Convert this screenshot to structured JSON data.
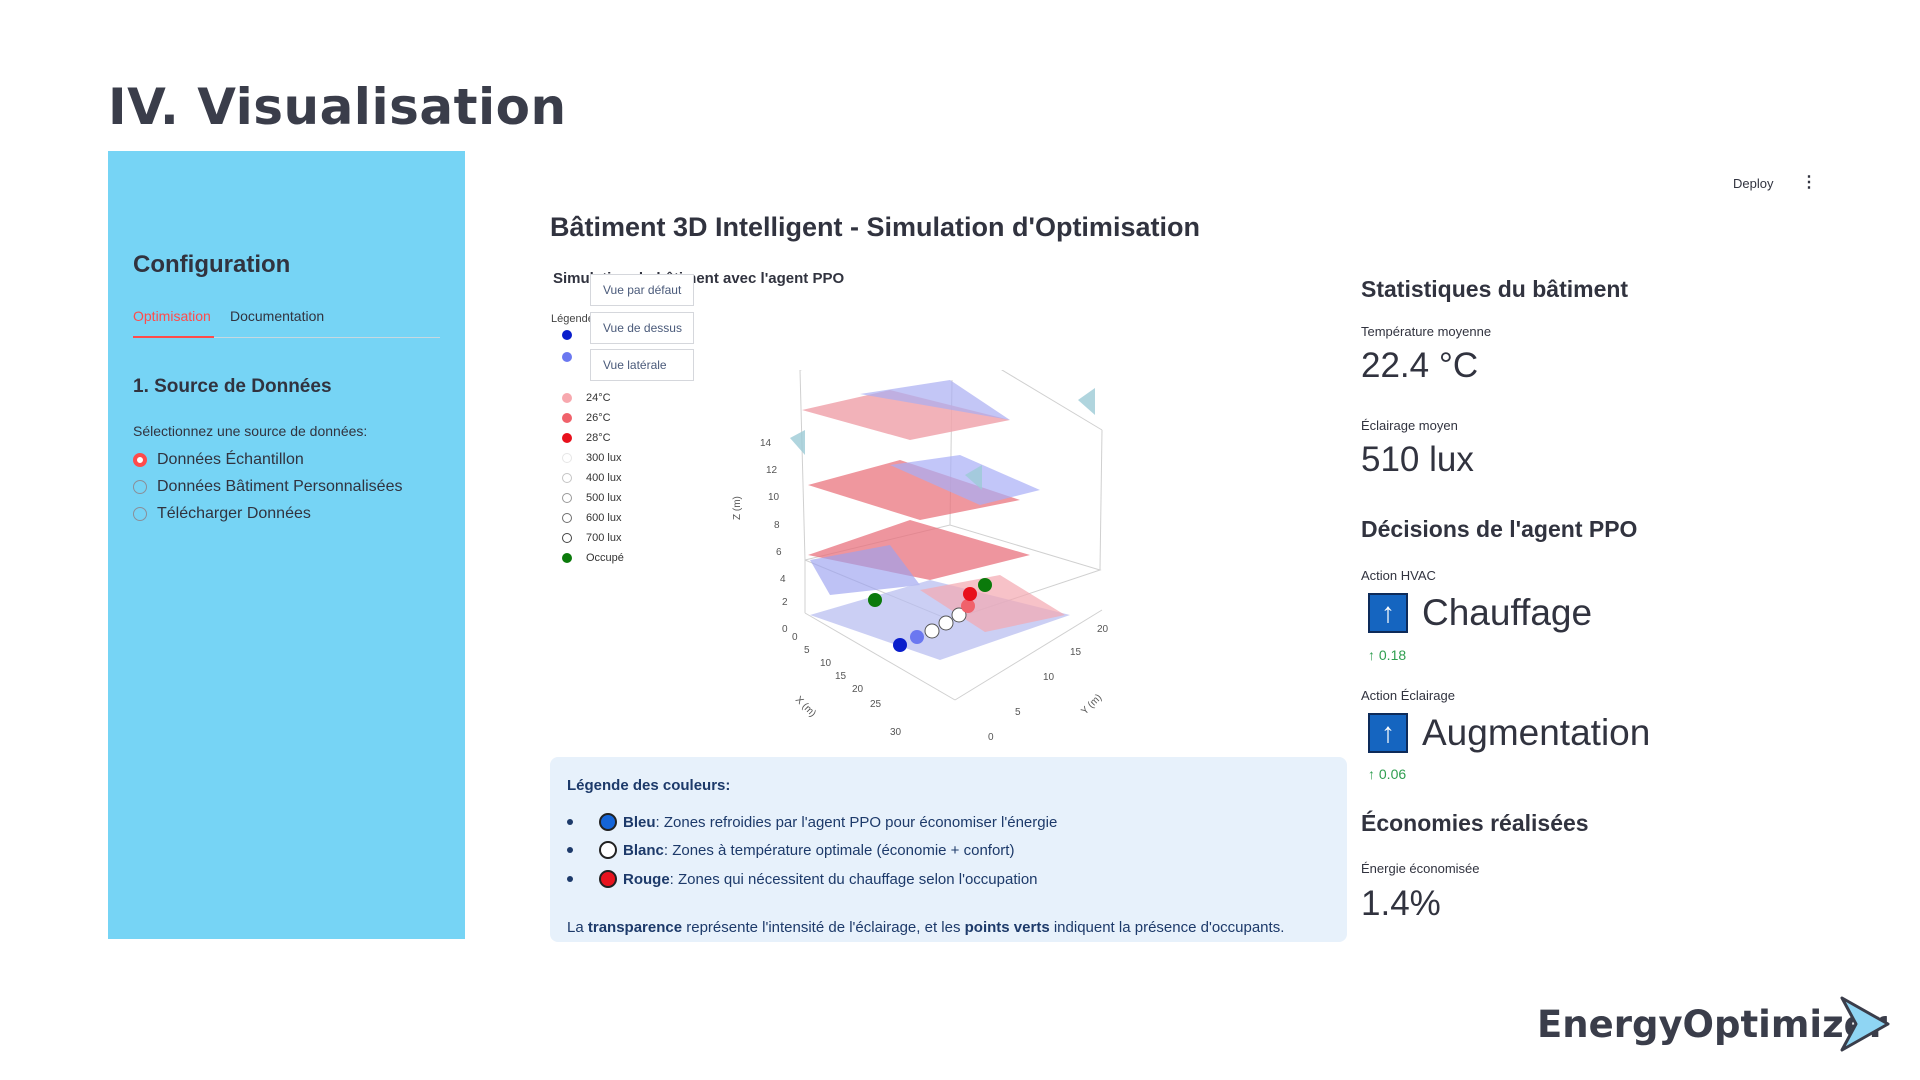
{
  "slide": {
    "title": "IV.  Visualisation",
    "brand": "EnergyOptimizer"
  },
  "sidebar": {
    "title": "Configuration",
    "tabs": [
      "Optimisation",
      "Documentation"
    ],
    "active_tab": "Optimisation",
    "section_title": "1. Source de Données",
    "radio_label": "Sélectionnez une source de données:",
    "radio_options": [
      "Données Échantillon",
      "Données Bâtiment Personnalisées",
      "Télécharger Données"
    ],
    "radio_selected": "Données Échantillon"
  },
  "toolbar": {
    "deploy_label": "Deploy",
    "menu_icon": "⋮"
  },
  "main": {
    "title": "Bâtiment 3D Intelligent - Simulation d'Optimisation",
    "plot": {
      "subtitle": "Simulation du bâtiment avec l'agent PPO",
      "view_buttons": [
        "Vue par défaut",
        "Vue de dessus",
        "Vue latérale"
      ],
      "legend_title": "Légende",
      "legend_items": [
        {
          "label": "",
          "color": "#0a1ecc"
        },
        {
          "label": "",
          "color": "#6b78f0"
        },
        {
          "label": "24°C",
          "color": "#f7a8ae"
        },
        {
          "label": "26°C",
          "color": "#f0626b"
        },
        {
          "label": "28°C",
          "color": "#e8101c"
        },
        {
          "label": "300 lux",
          "color": "#e6e6e6"
        },
        {
          "label": "400 lux",
          "color": "#c4c4c4"
        },
        {
          "label": "500 lux",
          "color": "#999999"
        },
        {
          "label": "600 lux",
          "color": "#6e6e6e"
        },
        {
          "label": "700 lux",
          "color": "#444444"
        },
        {
          "label": "Occupé",
          "color": "#0b7a0b"
        }
      ],
      "axis_x_title": "X (m)",
      "axis_y_title": "Y (m)",
      "axis_z_title": "Z (m)",
      "z_ticks": [
        "0",
        "2",
        "4",
        "6",
        "8",
        "10",
        "12",
        "14"
      ],
      "x_ticks": [
        "0",
        "5",
        "10",
        "15",
        "20",
        "25",
        "30"
      ],
      "y_ticks": [
        "0",
        "5",
        "10",
        "15",
        "20"
      ]
    },
    "color_legend": {
      "title": "Légende des couleurs:",
      "items": [
        {
          "name": "Bleu",
          "text": ": Zones refroidies par l'agent PPO pour économiser l'énergie",
          "color": "#1565d8"
        },
        {
          "name": "Blanc",
          "text": ": Zones à température optimale (économie + confort)",
          "color": "#ffffff"
        },
        {
          "name": "Rouge",
          "text": ": Zones qui nécessitent du chauffage selon l'occupation",
          "color": "#e8141e"
        }
      ],
      "footer_parts": [
        "La ",
        "transparence",
        " représente l'intensité de l'éclairage, et les ",
        "points verts",
        " indiquent la présence d'occupants."
      ]
    }
  },
  "stats": {
    "title": "Statistiques du bâtiment",
    "temp_label": "Température moyenne",
    "temp_value": "22.4 °C",
    "light_label": "Éclairage moyen",
    "light_value": "510 lux",
    "decisions_title": "Décisions de l'agent PPO",
    "hvac_label": "Action HVAC",
    "hvac_value": "Chauffage",
    "hvac_delta": "0.18",
    "light_action_label": "Action Éclairage",
    "light_action_value": "Augmentation",
    "light_delta": "0.06",
    "savings_title": "Économies réalisées",
    "energy_label": "Énergie économisée",
    "energy_value": "1.4%"
  }
}
